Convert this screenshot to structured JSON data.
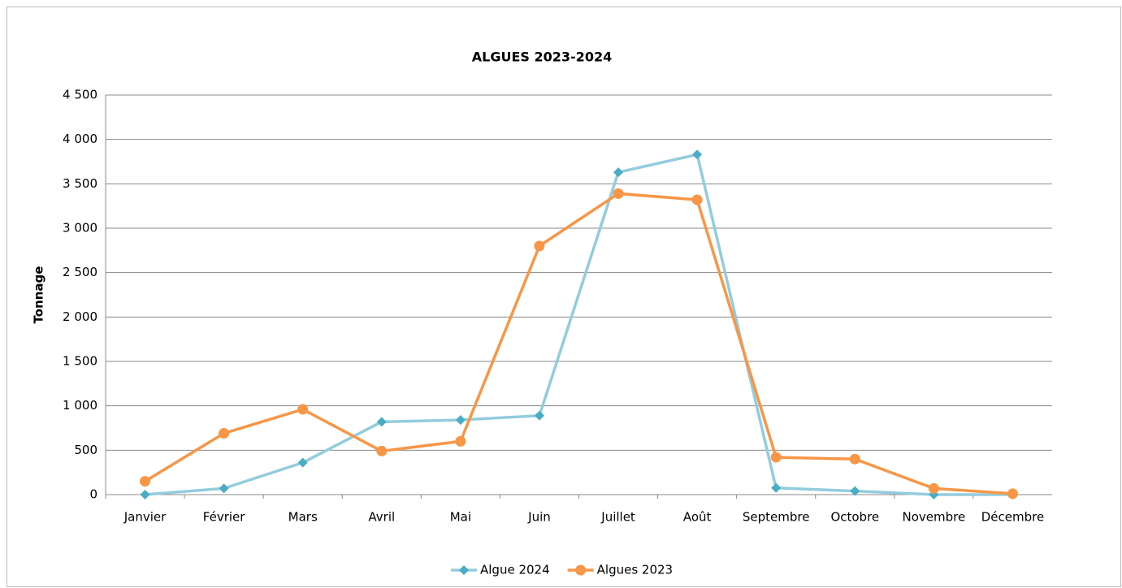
{
  "chart_data": {
    "type": "line",
    "title": "ALGUES 2023-2024",
    "y_label": "Tonnage",
    "categories": [
      "Janvier",
      "Février",
      "Mars",
      "Avril",
      "Mai",
      "Juin",
      "Juillet",
      "Août",
      "Septembre",
      "Octobre",
      "Novembre",
      "Décembre"
    ],
    "series": [
      {
        "name": "Algue 2024",
        "color": "#93cddd",
        "marker_color": "#4bacc6",
        "marker": "diamond",
        "values": [
          0,
          70,
          360,
          820,
          840,
          890,
          3630,
          3830,
          75,
          40,
          0,
          0
        ]
      },
      {
        "name": "Algues 2023",
        "color": "#f79646",
        "marker_color": "#f79646",
        "marker": "circle",
        "values": [
          150,
          690,
          960,
          490,
          600,
          2800,
          3390,
          3320,
          420,
          400,
          70,
          10
        ]
      }
    ],
    "ylim": [
      0,
      4500
    ],
    "yticks": [
      0,
      500,
      {
        "value": 1000,
        "label": "1 000"
      },
      {
        "value": 1500,
        "label": "1 500"
      },
      {
        "value": 2000,
        "label": "2 000"
      },
      {
        "value": 2500,
        "label": "2 500"
      },
      {
        "value": 3000,
        "label": "3 000"
      },
      {
        "value": 3500,
        "label": "3 500"
      },
      {
        "value": 4000,
        "label": "4 000"
      },
      {
        "value": 4500,
        "label": "4 500"
      }
    ],
    "grid": true,
    "legend": "bottom"
  }
}
